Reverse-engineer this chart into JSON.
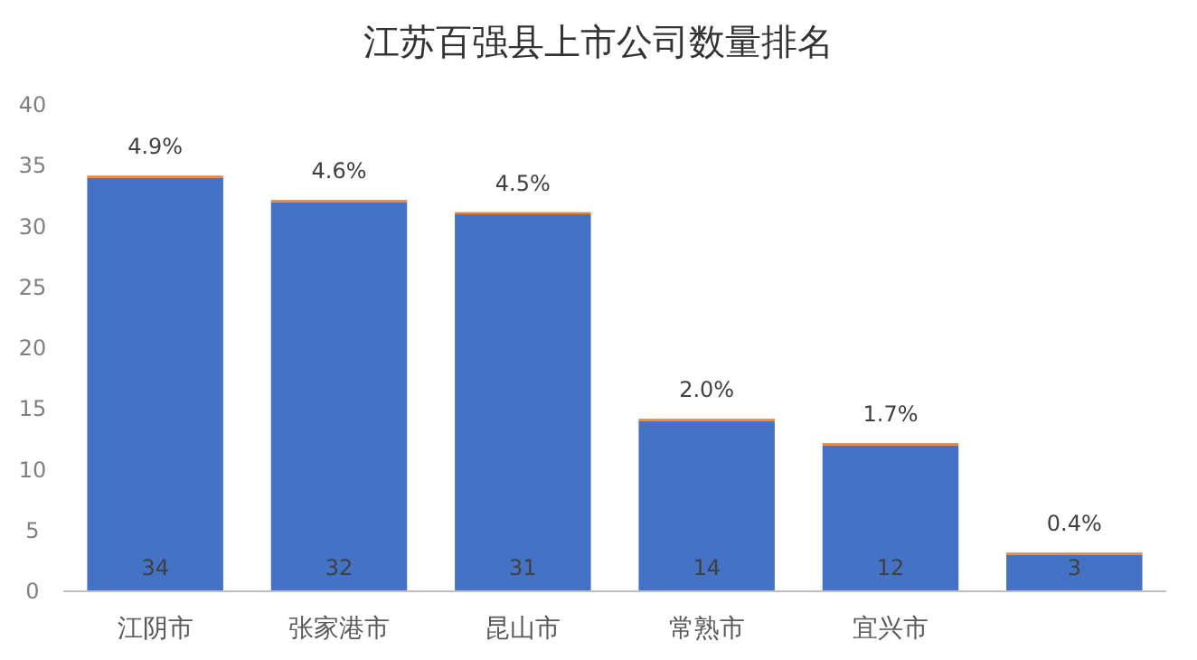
{
  "chart_data": {
    "type": "bar",
    "title": "江苏百强县上市公司数量排名",
    "categories": [
      "江阴市",
      "张家港市",
      "昆山市",
      "常熟市",
      "宜兴市",
      null
    ],
    "stacked": true,
    "series": [
      {
        "color": "#4472c4",
        "values": [
          34,
          32,
          31,
          14,
          12,
          3
        ],
        "value_labels": [
          "34",
          "32",
          "31",
          "14",
          "12",
          "3"
        ]
      },
      {
        "color": "#ed7d31",
        "values": [
          0.049,
          0.046,
          0.045,
          0.02,
          0.017,
          0.004
        ],
        "value_labels": [
          "4.9%",
          "4.6%",
          "4.5%",
          "2.0%",
          "1.7%",
          "0.4%"
        ]
      }
    ],
    "ylim": [
      0,
      40
    ],
    "yticks": [
      0,
      5,
      10,
      15,
      20,
      25,
      30,
      35,
      40
    ],
    "grid": false
  }
}
